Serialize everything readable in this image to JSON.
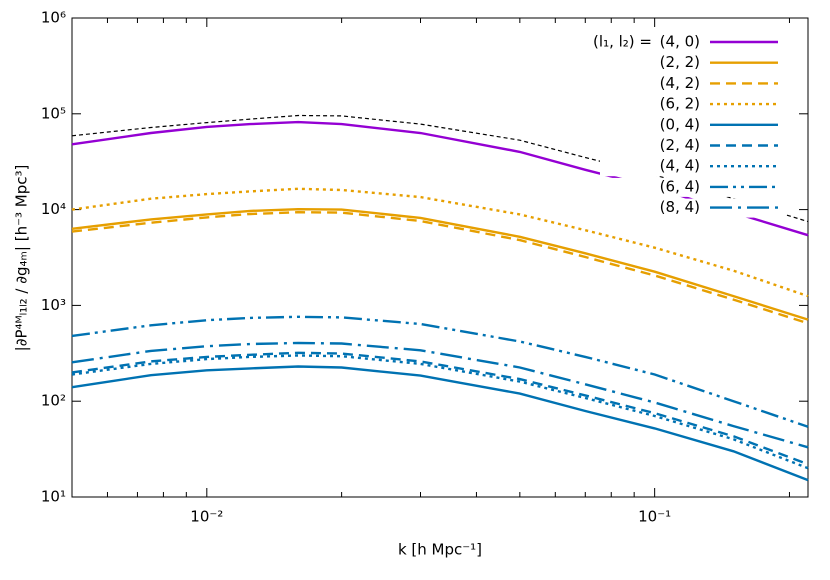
{
  "chart_data": {
    "type": "line",
    "xlabel": "k [h Mpc⁻¹]",
    "ylabel": "|∂P⁴ᴹₗ₁ₗ₂ / ∂g₄ₘ| [h⁻³ Mpc³]",
    "log_x": true,
    "log_y": true,
    "xlim": [
      0.005,
      0.22
    ],
    "ylim": [
      10,
      1000000
    ],
    "xticks": [
      {
        "value": 0.01,
        "label": "10⁻²"
      },
      {
        "value": 0.1,
        "label": "10⁻¹"
      }
    ],
    "xminorticks": [
      0.006,
      0.007,
      0.008,
      0.009,
      0.02,
      0.03,
      0.04,
      0.05,
      0.06,
      0.07,
      0.08,
      0.09,
      0.2
    ],
    "yticks": [
      {
        "value": 10,
        "label": "10¹"
      },
      {
        "value": 100,
        "label": "10²"
      },
      {
        "value": 1000,
        "label": "10³"
      },
      {
        "value": 10000,
        "label": "10⁴"
      },
      {
        "value": 100000,
        "label": "10⁵"
      },
      {
        "value": 1000000,
        "label": "10⁶"
      }
    ],
    "legend_title": "(l₁, l₂) =",
    "legend_position": "top-right",
    "x": [
      0.005,
      0.0075,
      0.01,
      0.0125,
      0.016,
      0.02,
      0.03,
      0.05,
      0.07,
      0.1,
      0.15,
      0.22
    ],
    "series": [
      {
        "name": "(4, 0)",
        "color": "#9400d3",
        "dash": "solid",
        "values": [
          48000,
          63000,
          73000,
          78000,
          82000,
          78000,
          63000,
          40000,
          26000,
          17000,
          9300,
          5400
        ]
      },
      {
        "name": "(2, 2)",
        "color": "#e69f00",
        "dash": "solid",
        "values": [
          6300,
          7900,
          8900,
          9700,
          10100,
          10000,
          8200,
          5200,
          3500,
          2250,
          1250,
          710
        ]
      },
      {
        "name": "(4, 2)",
        "color": "#e69f00",
        "dash": "dashed",
        "values": [
          5900,
          7300,
          8300,
          9000,
          9400,
          9300,
          7600,
          4800,
          3200,
          2050,
          1150,
          650
        ]
      },
      {
        "name": "(6, 2)",
        "color": "#e69f00",
        "dash": "dotted",
        "values": [
          10000,
          13000,
          14500,
          15500,
          16500,
          16000,
          13500,
          8900,
          6100,
          4000,
          2300,
          1250
        ]
      },
      {
        "name": "(0, 4)",
        "color": "#0072b2",
        "dash": "solid",
        "values": [
          140,
          187,
          210,
          220,
          230,
          225,
          185,
          120,
          79,
          52,
          30,
          15
        ]
      },
      {
        "name": "(2, 4)",
        "color": "#0072b2",
        "dash": "dashed",
        "values": [
          200,
          260,
          290,
          305,
          320,
          315,
          260,
          170,
          115,
          75,
          43,
          22
        ]
      },
      {
        "name": "(4, 4)",
        "color": "#0072b2",
        "dash": "dotted",
        "values": [
          190,
          245,
          275,
          290,
          300,
          295,
          245,
          160,
          108,
          70,
          40,
          20
        ]
      },
      {
        "name": "(6, 4)",
        "color": "#0072b2",
        "dash": "dashdotdot",
        "values": [
          480,
          620,
          700,
          740,
          760,
          750,
          640,
          420,
          290,
          190,
          100,
          54
        ]
      },
      {
        "name": "(8, 4)",
        "color": "#0072b2",
        "dash": "longdashdot",
        "values": [
          255,
          335,
          375,
          395,
          405,
          400,
          340,
          225,
          150,
          97,
          55,
          33
        ]
      },
      {
        "color": "#000000",
        "dash": "finedash",
        "values": [
          59000,
          72000,
          81000,
          88000,
          96000,
          95000,
          78000,
          53000,
          35000,
          23000,
          13000,
          7500
        ]
      }
    ]
  }
}
